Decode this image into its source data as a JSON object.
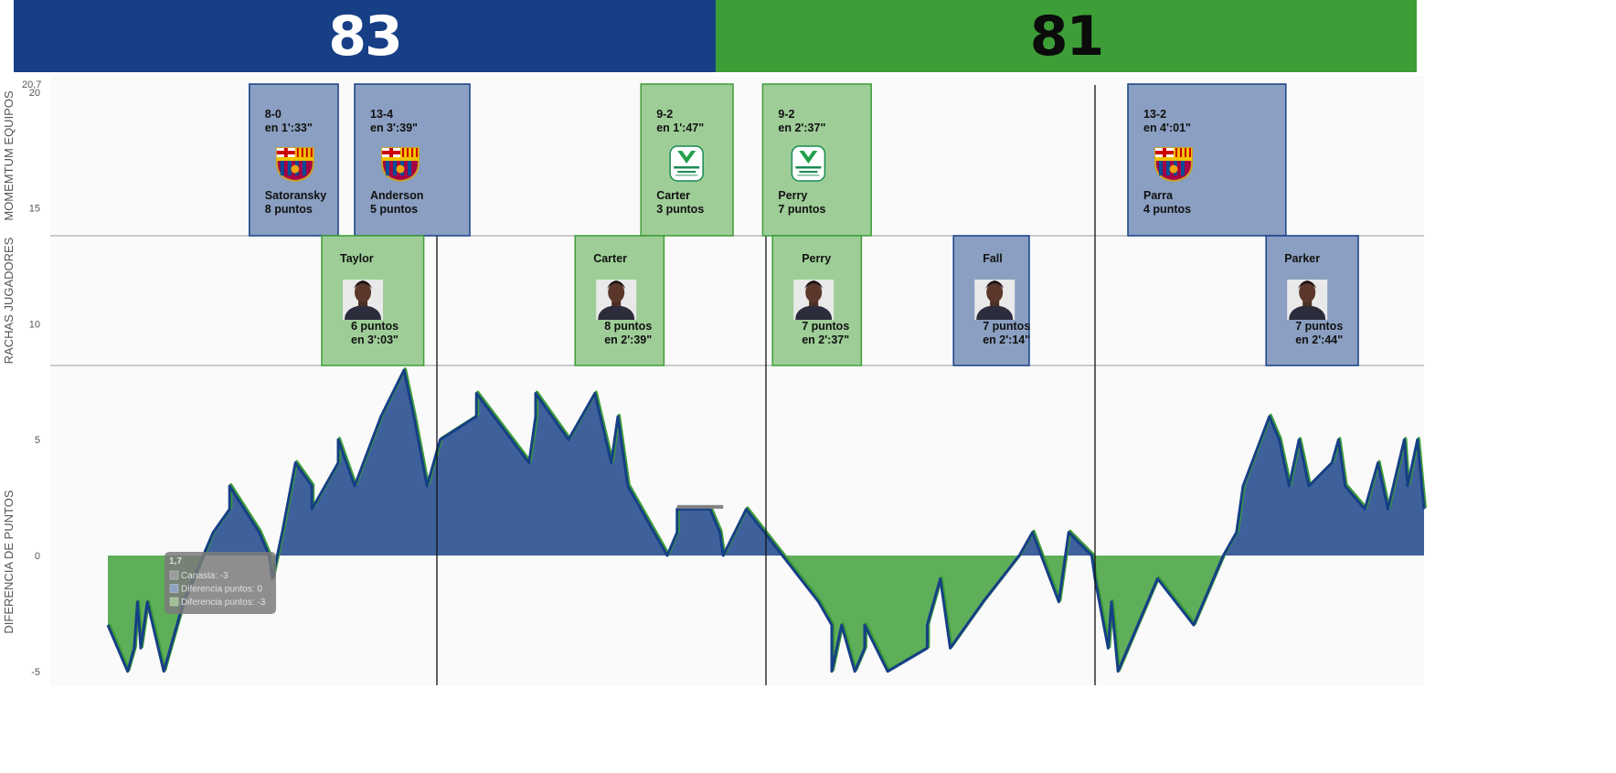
{
  "score": {
    "home": "83",
    "away": "81"
  },
  "colors": {
    "home": "#163f86",
    "away": "#3d9d37",
    "home_card": "#8a9fc1",
    "away_card": "#9ecd97"
  },
  "chart_data": {
    "type": "area",
    "y_axis": {
      "top_label": "20,7",
      "ticks": [
        {
          "v": 20,
          "label": "20"
        },
        {
          "v": 15,
          "label": "15"
        },
        {
          "v": 10,
          "label": "10"
        },
        {
          "v": 5,
          "label": "5"
        },
        {
          "v": 0,
          "label": "0"
        },
        {
          "v": -5,
          "label": "-5"
        }
      ],
      "range": [
        -5.6,
        20.7
      ]
    },
    "band_labels": {
      "team_runs": "MOMEMTUM EQUIPOS",
      "player_runs": "RACHAS JUGADORES",
      "diff": "DIFERENCIA DE PUNTOS"
    },
    "band_separators": [
      13.8,
      8.2
    ],
    "x_range": [
      0,
      40
    ],
    "quarter_lines": [
      10,
      20,
      30
    ],
    "diff_series": [
      [
        0,
        -3
      ],
      [
        0.6,
        -5
      ],
      [
        0.8,
        -4
      ],
      [
        0.9,
        -2
      ],
      [
        1.0,
        -4
      ],
      [
        1.2,
        -2
      ],
      [
        1.7,
        -5
      ],
      [
        2.3,
        -2
      ],
      [
        3.2,
        1
      ],
      [
        3.7,
        2
      ],
      [
        3.7,
        3
      ],
      [
        4.6,
        1
      ],
      [
        4.9,
        0
      ],
      [
        5.0,
        -1
      ],
      [
        5.3,
        1
      ],
      [
        5.7,
        4
      ],
      [
        6.2,
        3
      ],
      [
        6.2,
        2
      ],
      [
        7.0,
        4
      ],
      [
        7.0,
        5
      ],
      [
        7.5,
        3
      ],
      [
        8.3,
        6
      ],
      [
        9.0,
        8
      ],
      [
        9.3,
        6
      ],
      [
        9.7,
        3
      ],
      [
        10.1,
        5
      ],
      [
        11.2,
        6
      ],
      [
        11.2,
        7
      ],
      [
        12.8,
        4
      ],
      [
        13.0,
        6
      ],
      [
        13.0,
        7
      ],
      [
        14.0,
        5
      ],
      [
        14.8,
        7
      ],
      [
        15.3,
        4
      ],
      [
        15.5,
        6
      ],
      [
        15.8,
        3
      ],
      [
        17.0,
        0
      ],
      [
        17.3,
        1
      ],
      [
        17.3,
        2
      ],
      [
        18.3,
        2
      ],
      [
        18.6,
        1
      ],
      [
        18.7,
        0
      ],
      [
        19.4,
        2
      ],
      [
        20.5,
        0
      ],
      [
        21.6,
        -2
      ],
      [
        22.0,
        -3
      ],
      [
        22.0,
        -5
      ],
      [
        22.3,
        -3
      ],
      [
        22.7,
        -5
      ],
      [
        23.0,
        -4
      ],
      [
        23.0,
        -3
      ],
      [
        23.7,
        -5
      ],
      [
        24.9,
        -4
      ],
      [
        24.9,
        -3
      ],
      [
        25.3,
        -1
      ],
      [
        25.6,
        -4
      ],
      [
        26.6,
        -2
      ],
      [
        27.7,
        0
      ],
      [
        28.1,
        1
      ],
      [
        28.9,
        -2
      ],
      [
        29.2,
        1
      ],
      [
        29.9,
        0
      ],
      [
        30.0,
        -1
      ],
      [
        30.4,
        -4
      ],
      [
        30.5,
        -2
      ],
      [
        30.7,
        -5
      ],
      [
        31.9,
        -1
      ],
      [
        33.0,
        -3
      ],
      [
        33.9,
        0
      ],
      [
        34.3,
        1
      ],
      [
        34.5,
        3
      ],
      [
        35.3,
        6
      ],
      [
        35.6,
        5
      ],
      [
        35.9,
        3
      ],
      [
        36.2,
        5
      ],
      [
        36.5,
        3
      ],
      [
        37.2,
        4
      ],
      [
        37.4,
        5
      ],
      [
        37.6,
        3
      ],
      [
        38.2,
        2
      ],
      [
        38.6,
        4
      ],
      [
        38.9,
        2
      ],
      [
        39.4,
        5
      ],
      [
        39.5,
        3
      ],
      [
        39.8,
        5
      ],
      [
        40.0,
        2
      ]
    ],
    "team_runs": [
      {
        "team": "home",
        "x0": 4.3,
        "x1": 7.0,
        "score": "8-0",
        "time": "en 1':33\"",
        "logo": "barca",
        "player": "Satoransky",
        "points": "8 puntos"
      },
      {
        "team": "home",
        "x0": 7.5,
        "x1": 11.0,
        "score": "13-4",
        "time": "en 3':39\"",
        "logo": "barca",
        "player": "Anderson",
        "points": "5 puntos"
      },
      {
        "team": "away",
        "x0": 16.2,
        "x1": 19.0,
        "score": "9-2",
        "time": "en 1':47\"",
        "logo": "unicaja",
        "player": "Carter",
        "points": "3 puntos"
      },
      {
        "team": "away",
        "x0": 19.9,
        "x1": 23.2,
        "score": "9-2",
        "time": "en 2':37\"",
        "logo": "unicaja",
        "player": "Perry",
        "points": "7 puntos"
      },
      {
        "team": "home",
        "x0": 31.0,
        "x1": 35.8,
        "score": "13-2",
        "time": "en 4':01\"",
        "logo": "barca",
        "player": "Parra",
        "points": "4 puntos"
      }
    ],
    "team_logo_text": {
      "barca": "FCB",
      "unicaja": "Fundación Unicaja"
    },
    "player_runs": [
      {
        "team": "away",
        "x0": 6.5,
        "x1": 9.6,
        "player": "Taylor",
        "points": "6 puntos",
        "time": "en 3':03\""
      },
      {
        "team": "away",
        "x0": 14.2,
        "x1": 16.9,
        "player": "Carter",
        "points": "8 puntos",
        "time": "en 2':39\""
      },
      {
        "team": "away",
        "x0": 20.2,
        "x1": 22.9,
        "player": "Perry",
        "points": "7 puntos",
        "time": "en 2':37\""
      },
      {
        "team": "home",
        "x0": 25.7,
        "x1": 28.0,
        "player": "Fall",
        "points": "7 puntos",
        "time": "en 2':14\""
      },
      {
        "team": "home",
        "x0": 35.2,
        "x1": 38.0,
        "player": "Parker",
        "points": "7 puntos",
        "time": "en 2':44\""
      }
    ],
    "tooltip": {
      "title": "1,7",
      "items": [
        "Canasta: -3",
        "Diferencia puntos: 0",
        "Diferencia  puntos: -3"
      ],
      "x": 1.7,
      "y": 0
    }
  }
}
